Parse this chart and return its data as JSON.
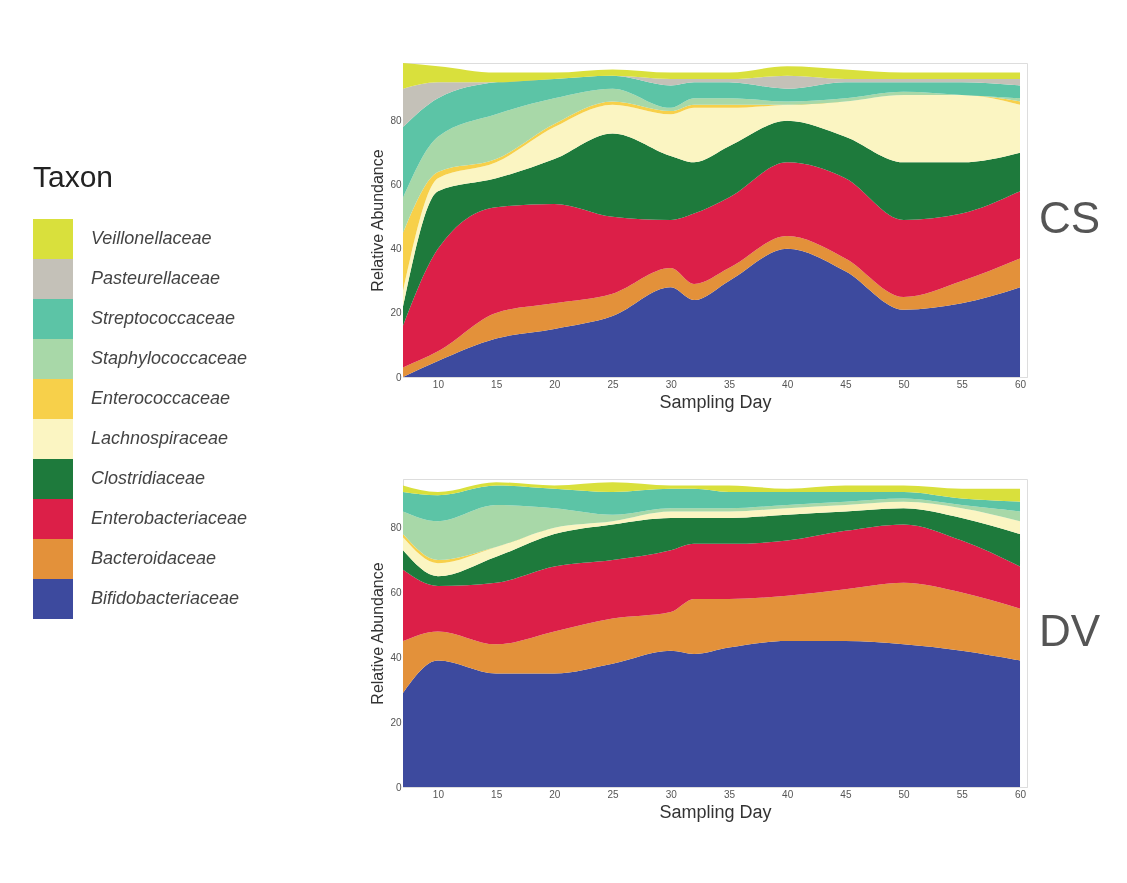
{
  "chart_data": [
    {
      "type": "area",
      "stacked": true,
      "title": "CS",
      "xlabel": "Sampling Day",
      "ylabel": "Relative Abundance",
      "legend_title": "Taxon",
      "legend": "left",
      "xlim": [
        7,
        60.6
      ],
      "ylim": [
        0,
        98
      ],
      "xticks": [
        10,
        15,
        20,
        25,
        30,
        35,
        40,
        45,
        50,
        55,
        60
      ],
      "yticks": [
        0,
        20,
        40,
        60,
        80
      ],
      "x": [
        7,
        10,
        15,
        20,
        25,
        30,
        32,
        35,
        40,
        45,
        50,
        55,
        60
      ],
      "series": [
        {
          "name": "Bifidobacteriaceae",
          "color": "#3d4a9e",
          "values": [
            0,
            5,
            12,
            15,
            19,
            28,
            24,
            30,
            40,
            33,
            21,
            23,
            28
          ]
        },
        {
          "name": "Bacteroidaceae",
          "color": "#e3913a",
          "values": [
            3,
            3,
            8,
            8,
            7,
            6,
            5,
            4,
            4,
            4,
            4,
            7,
            9
          ]
        },
        {
          "name": "Enterobacteriaceae",
          "color": "#dc1f48",
          "values": [
            13,
            32,
            33,
            31,
            24,
            15,
            22,
            22,
            23,
            25,
            24,
            21,
            21
          ]
        },
        {
          "name": "Clostridiaceae",
          "color": "#1e7a3c",
          "values": [
            6,
            18,
            9,
            14,
            26,
            20,
            16,
            16,
            13,
            13,
            18,
            16,
            12
          ]
        },
        {
          "name": "Lachnospiraceae",
          "color": "#fbf5c2",
          "values": [
            5,
            4,
            5,
            10,
            9,
            13,
            17,
            12,
            5,
            11,
            21,
            21,
            15
          ]
        },
        {
          "name": "Enterococcaceae",
          "color": "#f7d04a",
          "values": [
            18,
            2,
            1,
            1,
            1,
            1,
            1,
            1,
            0,
            0,
            0,
            0,
            1
          ]
        },
        {
          "name": "Staphylococcaceae",
          "color": "#a8d8a8",
          "values": [
            11,
            11,
            14,
            8,
            4,
            1,
            2,
            2,
            1,
            1,
            1,
            0,
            1
          ]
        },
        {
          "name": "Streptococcaceae",
          "color": "#5cc4a6",
          "values": [
            22,
            12,
            10,
            6,
            4,
            7,
            5,
            5,
            4,
            5,
            3,
            4,
            4
          ]
        },
        {
          "name": "Pasteurellaceae",
          "color": "#c4c1b8",
          "values": [
            12,
            5,
            0,
            0,
            0,
            2,
            1,
            1,
            4,
            1,
            1,
            1,
            2
          ]
        },
        {
          "name": "Veillonellaceae",
          "color": "#d9e03c",
          "values": [
            8,
            5,
            3,
            2,
            2,
            2,
            2,
            2,
            3,
            3,
            2,
            2,
            2
          ]
        }
      ]
    },
    {
      "type": "area",
      "stacked": true,
      "title": "DV",
      "xlabel": "Sampling Day",
      "ylabel": "Relative Abundance",
      "xlim": [
        7,
        60.6
      ],
      "ylim": [
        0,
        95
      ],
      "xticks": [
        10,
        15,
        20,
        25,
        30,
        35,
        40,
        45,
        50,
        55,
        60
      ],
      "yticks": [
        0,
        20,
        40,
        60,
        80
      ],
      "x": [
        7,
        10,
        15,
        20,
        25,
        30,
        32,
        35,
        40,
        45,
        50,
        55,
        60
      ],
      "series": [
        {
          "name": "Bifidobacteriaceae",
          "color": "#3d4a9e",
          "values": [
            29,
            39,
            35,
            35,
            38,
            42,
            41,
            43,
            45,
            45,
            44,
            42,
            39
          ]
        },
        {
          "name": "Bacteroidaceae",
          "color": "#e3913a",
          "values": [
            16,
            9,
            9,
            13,
            14,
            12,
            17,
            15,
            14,
            16,
            19,
            18,
            16
          ]
        },
        {
          "name": "Enterobacteriaceae",
          "color": "#dc1f48",
          "values": [
            22,
            14,
            19,
            20,
            18,
            19,
            17,
            17,
            17,
            18,
            18,
            16,
            13
          ]
        },
        {
          "name": "Clostridiaceae",
          "color": "#1e7a3c",
          "values": [
            6,
            3,
            8,
            10,
            11,
            10,
            8,
            8,
            8,
            6,
            5,
            7,
            10
          ]
        },
        {
          "name": "Lachnospiraceae",
          "color": "#fbf5c2",
          "values": [
            4,
            4,
            3,
            2,
            1,
            2,
            2,
            2,
            2,
            2,
            2,
            3,
            4
          ]
        },
        {
          "name": "Enterococcaceae",
          "color": "#f7d04a",
          "values": [
            1,
            1,
            0,
            0,
            0,
            0,
            0,
            0,
            0,
            0,
            0,
            0,
            0
          ]
        },
        {
          "name": "Staphylococcaceae",
          "color": "#a8d8a8",
          "values": [
            7,
            12,
            13,
            6,
            2,
            1,
            1,
            1,
            1,
            1,
            1,
            1,
            3
          ]
        },
        {
          "name": "Streptococcaceae",
          "color": "#5cc4a6",
          "values": [
            6,
            8,
            6,
            6,
            7,
            6,
            6,
            5,
            4,
            3,
            2,
            2,
            3
          ]
        },
        {
          "name": "Pasteurellaceae",
          "color": "#c4c1b8",
          "values": [
            null,
            null,
            null,
            null,
            null,
            null,
            null,
            null,
            null,
            null,
            null,
            null,
            null
          ]
        },
        {
          "name": "Veillonellaceae",
          "color": "#d9e03c",
          "values": [
            2,
            1,
            1,
            1,
            3,
            1,
            1,
            2,
            1,
            2,
            2,
            3,
            4
          ]
        }
      ]
    }
  ]
}
